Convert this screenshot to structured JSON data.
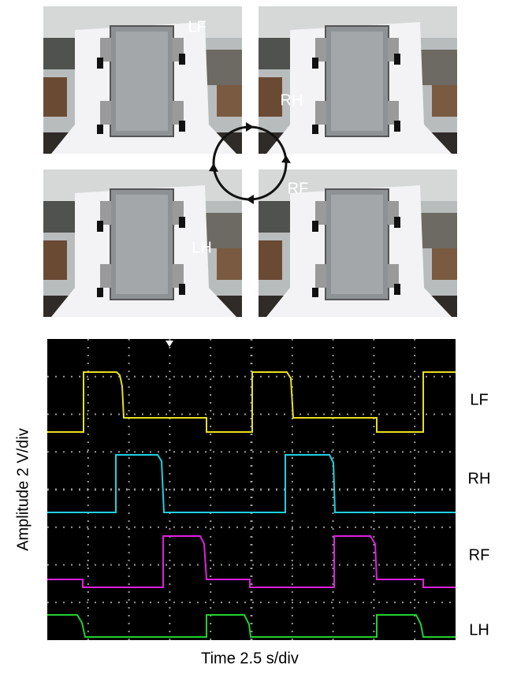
{
  "photos": [
    {
      "label": "LF"
    },
    {
      "label": "RH"
    },
    {
      "label": "RF"
    },
    {
      "label": "LH"
    }
  ],
  "scope": {
    "trace_labels": [
      "LF",
      "RH",
      "RF",
      "LH"
    ],
    "y_label": "Amplitude 2 V/div",
    "x_label": "Time 2.5 s/div"
  }
}
